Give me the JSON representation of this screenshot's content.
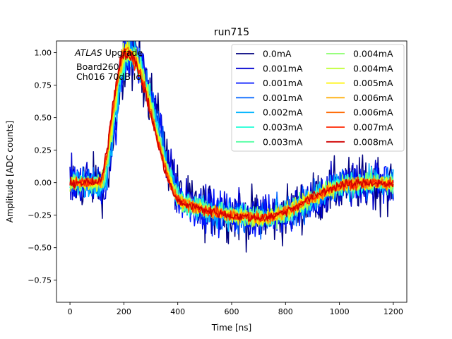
{
  "chart_data": {
    "type": "line",
    "title": "run715",
    "xlabel": "Time [ns]",
    "ylabel": "Amplitude [ADC counts]",
    "xlim": [
      -50,
      1250
    ],
    "ylim": [
      -0.92,
      1.09
    ],
    "xticks": [
      0,
      200,
      400,
      600,
      800,
      1000,
      1200
    ],
    "yticks": [
      -0.75,
      -0.5,
      -0.25,
      0.0,
      0.25,
      0.5,
      0.75,
      1.0
    ],
    "xtick_labels": [
      "0",
      "200",
      "400",
      "600",
      "800",
      "1000",
      "1200"
    ],
    "ytick_labels": [
      "−0.75",
      "−0.50",
      "−0.25",
      "0.00",
      "0.25",
      "0.50",
      "0.75",
      "1.00"
    ],
    "grid": false,
    "legend_position": "top-right",
    "legend_columns": 2,
    "annotation": {
      "experiment_italic": "ATLAS",
      "experiment_rest": " Upgrade",
      "board": "Board260",
      "channel": "Ch016 70dB lo"
    },
    "pulse_shape": {
      "baseline": 0.0,
      "peak_time": 205,
      "peak_amplitude": 1.0,
      "undershoot_time": 700,
      "undershoot_amplitude": -0.27,
      "recovery_time": 1050,
      "end_time": 1200
    },
    "series": [
      {
        "name": "0.0mA",
        "color": "#00007f",
        "noise": 0.2
      },
      {
        "name": "0.001mA",
        "color": "#0000d0",
        "noise": 0.17
      },
      {
        "name": "0.001mA",
        "color": "#0015ff",
        "noise": 0.15
      },
      {
        "name": "0.001mA",
        "color": "#0064ff",
        "noise": 0.12
      },
      {
        "name": "0.002mA",
        "color": "#00b4ff",
        "noise": 0.1
      },
      {
        "name": "0.003mA",
        "color": "#1fffd7",
        "noise": 0.085
      },
      {
        "name": "0.003mA",
        "color": "#54ffa3",
        "noise": 0.075
      },
      {
        "name": "0.004mA",
        "color": "#8aff6c",
        "noise": 0.065
      },
      {
        "name": "0.004mA",
        "color": "#c0ff36",
        "noise": 0.058
      },
      {
        "name": "0.005mA",
        "color": "#fff400",
        "noise": 0.052
      },
      {
        "name": "0.006mA",
        "color": "#ffab00",
        "noise": 0.046
      },
      {
        "name": "0.006mA",
        "color": "#ff6800",
        "noise": 0.042
      },
      {
        "name": "0.007mA",
        "color": "#ff2500",
        "noise": 0.038
      },
      {
        "name": "0.008mA",
        "color": "#d00000",
        "noise": 0.034
      }
    ]
  }
}
